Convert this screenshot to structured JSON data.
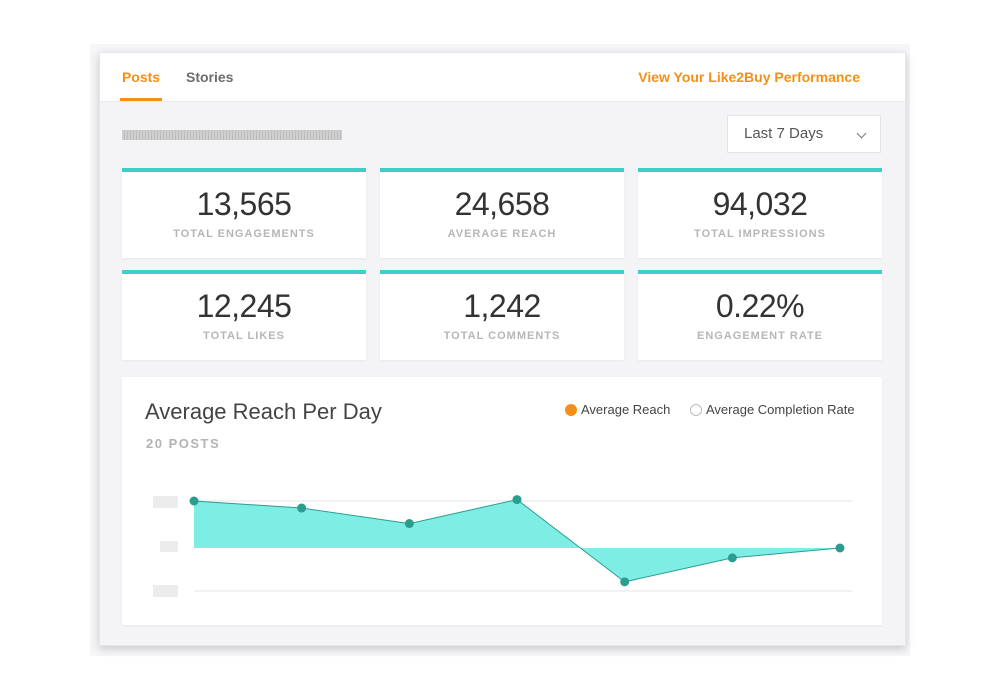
{
  "tabs": [
    {
      "label": "Posts",
      "active": true
    },
    {
      "label": "Stories",
      "active": false
    }
  ],
  "performance_link": "View Your Like2Buy Performance",
  "date_range": {
    "selected": "Last 7 Days",
    "icon": "chevron-down-icon"
  },
  "stats": [
    {
      "value": "13,565",
      "label": "TOTAL ENGAGEMENTS"
    },
    {
      "value": "24,658",
      "label": "AVERAGE REACH"
    },
    {
      "value": "94,032",
      "label": "TOTAL IMPRESSIONS"
    },
    {
      "value": "12,245",
      "label": "TOTAL LIKES"
    },
    {
      "value": "1,242",
      "label": "TOTAL COMMENTS"
    },
    {
      "value": "0.22%",
      "label": "ENGAGEMENT RATE"
    }
  ],
  "chart": {
    "title": "Average Reach Per Day",
    "subtitle": "20 POSTS",
    "legend": [
      {
        "label": "Average Reach",
        "selected": true
      },
      {
        "label": "Average Completion Rate",
        "selected": false
      }
    ]
  },
  "chart_data": {
    "type": "area",
    "title": "Average Reach Per Day",
    "subtitle": "20 POSTS",
    "series": [
      {
        "name": "Average Reach",
        "values": [
          1.0,
          0.85,
          0.52,
          1.03,
          -0.72,
          -0.21,
          0.0
        ]
      }
    ],
    "ylim": [
      -1,
      1
    ],
    "y_ticks_blurred": true,
    "grid": true,
    "legend_position": "top-right",
    "colors": {
      "line": "#2a9d90",
      "fill": "#7eede4",
      "point": "#2a9d90",
      "baseline": "#e6e6e6"
    }
  },
  "colors": {
    "accent": "#f39019",
    "teal": "#3ecfc7"
  }
}
